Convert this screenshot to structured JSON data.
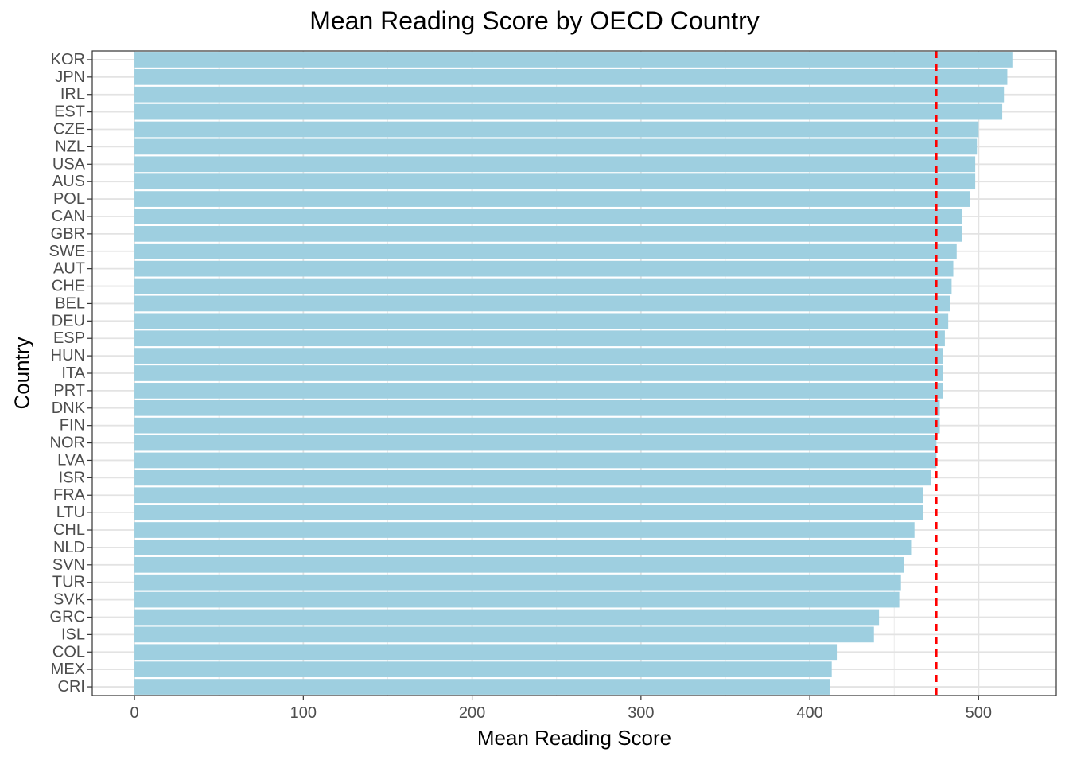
{
  "chart_data": {
    "type": "bar",
    "orientation": "horizontal",
    "title": "Mean Reading Score by OECD Country",
    "xlabel": "Mean Reading Score",
    "ylabel": "Country",
    "xlim": [
      -25,
      546
    ],
    "xticks": [
      0,
      100,
      200,
      300,
      400,
      500
    ],
    "grid": true,
    "bar_color": "#9ecfe0",
    "reference_line": {
      "value": 475,
      "color": "#ff0000",
      "style": "dashed"
    },
    "categories": [
      "KOR",
      "JPN",
      "IRL",
      "EST",
      "CZE",
      "NZL",
      "USA",
      "AUS",
      "POL",
      "CAN",
      "GBR",
      "SWE",
      "AUT",
      "CHE",
      "BEL",
      "DEU",
      "ESP",
      "HUN",
      "ITA",
      "PRT",
      "DNK",
      "FIN",
      "NOR",
      "LVA",
      "ISR",
      "FRA",
      "LTU",
      "CHL",
      "NLD",
      "SVN",
      "TUR",
      "SVK",
      "GRC",
      "ISL",
      "COL",
      "MEX",
      "CRI"
    ],
    "values": [
      520,
      517,
      515,
      514,
      500,
      499,
      498,
      498,
      495,
      490,
      490,
      487,
      485,
      484,
      483,
      482,
      480,
      479,
      479,
      479,
      477,
      477,
      475,
      475,
      472,
      467,
      467,
      462,
      460,
      456,
      454,
      453,
      441,
      438,
      416,
      413,
      412
    ]
  }
}
